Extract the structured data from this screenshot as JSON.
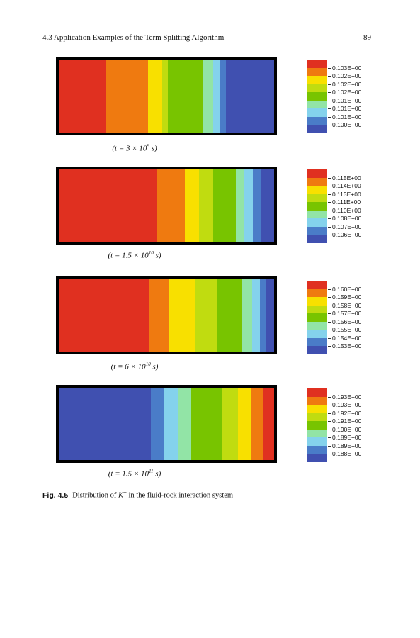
{
  "header": {
    "section": "4.3   Application Examples of the Term Splitting Algorithm",
    "page": "89"
  },
  "colors": {
    "red": "#e03020",
    "orange": "#ef7a10",
    "yellow": "#f8e000",
    "yellowgreen": "#c0dc10",
    "green": "#78c400",
    "mint": "#92e4a6",
    "cyan": "#84d2ec",
    "steel": "#4a7cc8",
    "blue": "#4050b0"
  },
  "panels": [
    {
      "caption_pre": "(t = 3 × 10",
      "caption_exp": "9",
      "caption_post": " s)",
      "bands": [
        {
          "color": "red",
          "width": 0.218
        },
        {
          "color": "orange",
          "width": 0.198
        },
        {
          "color": "yellow",
          "width": 0.063
        },
        {
          "color": "yellowgreen",
          "width": 0.027
        },
        {
          "color": "green",
          "width": 0.161
        },
        {
          "color": "mint",
          "width": 0.049
        },
        {
          "color": "cyan",
          "width": 0.033
        },
        {
          "color": "steel",
          "width": 0.027
        },
        {
          "color": "blue",
          "width": 0.224
        }
      ],
      "legend": [
        "0.103E+00",
        "0.102E+00",
        "0.102E+00",
        "0.102E+00",
        "0.101E+00",
        "0.101E+00",
        "0.101E+00",
        "0.100E+00"
      ]
    },
    {
      "caption_pre": "(t = 1.5 × 10",
      "caption_exp": "10",
      "caption_post": " s)",
      "bands": [
        {
          "color": "red",
          "width": 0.453
        },
        {
          "color": "orange",
          "width": 0.133
        },
        {
          "color": "yellow",
          "width": 0.066
        },
        {
          "color": "yellowgreen",
          "width": 0.066
        },
        {
          "color": "green",
          "width": 0.103
        },
        {
          "color": "mint",
          "width": 0.04
        },
        {
          "color": "cyan",
          "width": 0.04
        },
        {
          "color": "steel",
          "width": 0.04
        },
        {
          "color": "blue",
          "width": 0.059
        }
      ],
      "legend": [
        "0.115E+00",
        "0.114E+00",
        "0.113E+00",
        "0.111E+00",
        "0.110E+00",
        "0.108E+00",
        "0.107E+00",
        "0.106E+00"
      ]
    },
    {
      "caption_pre": "(t = 6 × 10",
      "caption_exp": "10",
      "caption_post": " s)",
      "bands": [
        {
          "color": "red",
          "width": 0.42
        },
        {
          "color": "orange",
          "width": 0.092
        },
        {
          "color": "yellow",
          "width": 0.122
        },
        {
          "color": "yellowgreen",
          "width": 0.102
        },
        {
          "color": "green",
          "width": 0.115
        },
        {
          "color": "mint",
          "width": 0.046
        },
        {
          "color": "cyan",
          "width": 0.036
        },
        {
          "color": "steel",
          "width": 0.03
        },
        {
          "color": "blue",
          "width": 0.037
        }
      ],
      "legend": [
        "0.160E+00",
        "0.159E+00",
        "0.158E+00",
        "0.157E+00",
        "0.156E+00",
        "0.155E+00",
        "0.154E+00",
        "0.153E+00"
      ]
    },
    {
      "caption_pre": "(t = 1.5 × 10",
      "caption_exp": "11",
      "caption_post": " s)",
      "bands": [
        {
          "color": "blue",
          "width": 0.427
        },
        {
          "color": "steel",
          "width": 0.064
        },
        {
          "color": "cyan",
          "width": 0.061
        },
        {
          "color": "mint",
          "width": 0.061
        },
        {
          "color": "green",
          "width": 0.145
        },
        {
          "color": "yellowgreen",
          "width": 0.074
        },
        {
          "color": "yellow",
          "width": 0.064
        },
        {
          "color": "orange",
          "width": 0.054
        },
        {
          "color": "red",
          "width": 0.05
        }
      ],
      "legend": [
        "0.193E+00",
        "0.193E+00",
        "0.192E+00",
        "0.191E+00",
        "0.190E+00",
        "0.189E+00",
        "0.189E+00",
        "0.188E+00"
      ]
    }
  ],
  "legend_colors": [
    "red",
    "orange",
    "yellow",
    "yellowgreen",
    "green",
    "mint",
    "cyan",
    "steel",
    "blue"
  ],
  "figure_caption": {
    "label": "Fig. 4.5",
    "text_pre": "Distribution of ",
    "ion": "K",
    "ion_sup": "+",
    "text_post": " in the fluid-rock interaction system"
  }
}
